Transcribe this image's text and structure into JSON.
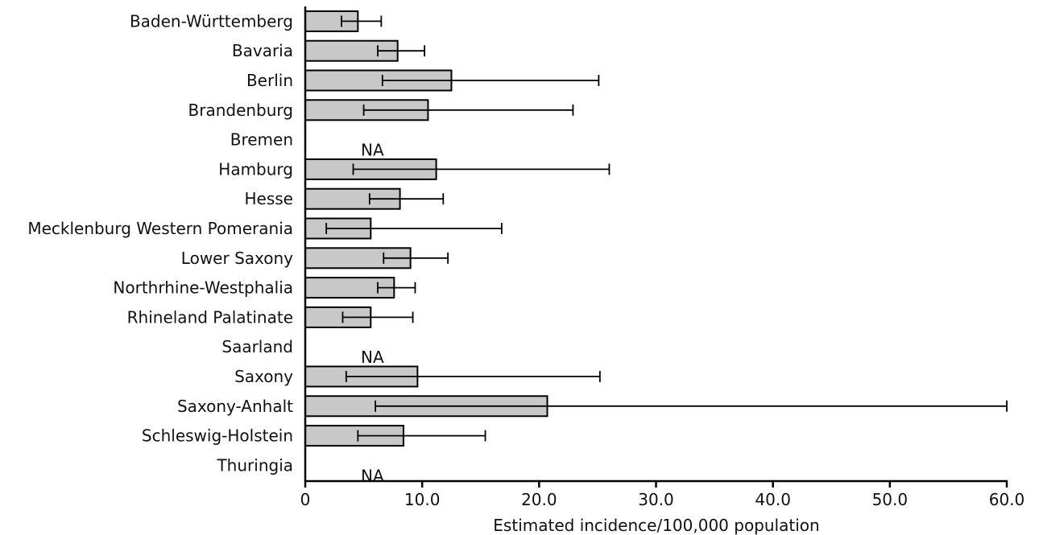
{
  "chart_data": {
    "type": "bar",
    "orientation": "horizontal",
    "title": "",
    "xlabel": "Estimated incidence/100,000 population",
    "ylabel": "",
    "xlim": [
      0,
      60
    ],
    "x_ticks": [
      0,
      10,
      20,
      30,
      40,
      50,
      60
    ],
    "x_tick_labels": [
      "0",
      "10.0",
      "20.0",
      "30.0",
      "40.0",
      "50.0",
      "60.0"
    ],
    "grid": false,
    "bar_color": "#c8c8c8",
    "na_text": "NA",
    "categories": [
      "Baden-Württemberg",
      "Bavaria",
      "Berlin",
      "Brandenburg",
      "Bremen",
      "Hamburg",
      "Hesse",
      "Mecklenburg Western Pomerania",
      "Lower Saxony",
      "Northrhine-Westphalia",
      "Rhineland Palatinate",
      "Saarland",
      "Saxony",
      "Saxony-Anhalt",
      "Schleswig-Holstein",
      "Thuringia"
    ],
    "values": [
      4.5,
      7.9,
      12.5,
      10.5,
      null,
      11.2,
      8.1,
      5.6,
      9.0,
      7.6,
      5.6,
      null,
      9.6,
      20.7,
      8.4,
      null
    ],
    "ci_lower": [
      3.1,
      6.2,
      6.6,
      5.0,
      null,
      4.1,
      5.5,
      1.8,
      6.7,
      6.2,
      3.2,
      null,
      3.5,
      6.0,
      4.5,
      null
    ],
    "ci_upper": [
      6.5,
      10.2,
      25.1,
      22.9,
      null,
      26.0,
      11.8,
      16.8,
      12.2,
      9.4,
      9.2,
      null,
      25.2,
      60.0,
      15.4,
      null
    ]
  }
}
